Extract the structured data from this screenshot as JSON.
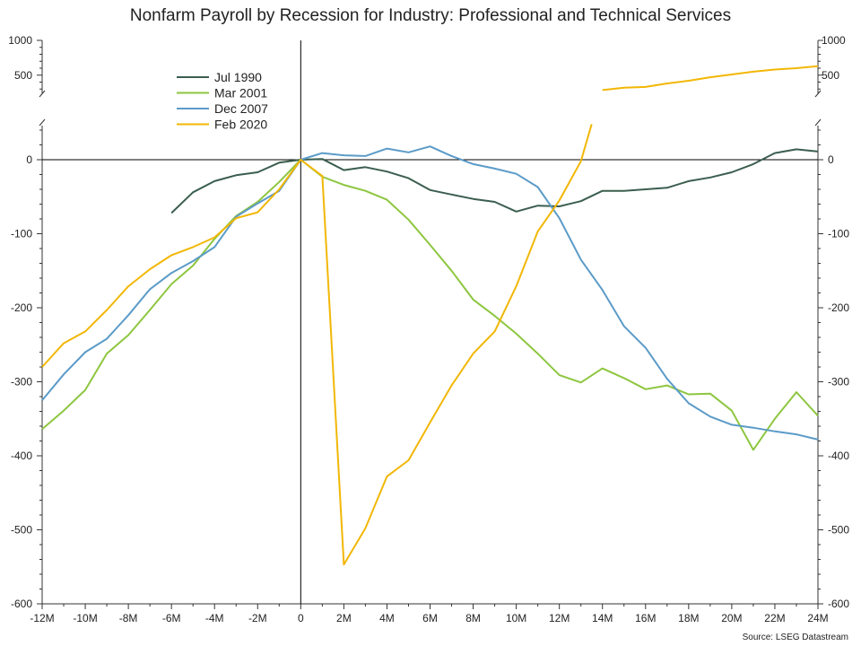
{
  "chart_data": {
    "type": "line",
    "title": "Nonfarm Payroll by Recession for Industry: Professional and Technical Services",
    "source": "Source: LSEG Datastream",
    "xlabel": "",
    "ylabel": "",
    "x_range": [
      -12,
      24
    ],
    "x_ticks": [
      {
        "value": -12,
        "label": "-12M"
      },
      {
        "value": -10,
        "label": "-10M"
      },
      {
        "value": -8,
        "label": "-8M"
      },
      {
        "value": -6,
        "label": "-6M"
      },
      {
        "value": -4,
        "label": "-4M"
      },
      {
        "value": -2,
        "label": "-2M"
      },
      {
        "value": 0,
        "label": "0"
      },
      {
        "value": 2,
        "label": "2M"
      },
      {
        "value": 4,
        "label": "4M"
      },
      {
        "value": 6,
        "label": "6M"
      },
      {
        "value": 8,
        "label": "8M"
      },
      {
        "value": 10,
        "label": "10M"
      },
      {
        "value": 12,
        "label": "12M"
      },
      {
        "value": 14,
        "label": "14M"
      },
      {
        "value": 16,
        "label": "16M"
      },
      {
        "value": 18,
        "label": "18M"
      },
      {
        "value": 20,
        "label": "20M"
      },
      {
        "value": 22,
        "label": "22M"
      },
      {
        "value": 24,
        "label": "24M"
      }
    ],
    "y_main_range": [
      -600,
      40
    ],
    "y_main_ticks": [
      {
        "value": 0,
        "label": "0"
      },
      {
        "value": -100,
        "label": "-100"
      },
      {
        "value": -200,
        "label": "-200"
      },
      {
        "value": -300,
        "label": "-300"
      },
      {
        "value": -400,
        "label": "-400"
      },
      {
        "value": -500,
        "label": "-500"
      },
      {
        "value": -600,
        "label": "-600"
      }
    ],
    "y_break_range": [
      200,
      1000
    ],
    "y_break_ticks": [
      {
        "value": 1000,
        "label": "1000"
      },
      {
        "value": 500,
        "label": "500"
      }
    ],
    "axis_break": true,
    "grid": false,
    "legend_position": "top-left",
    "series": [
      {
        "name": "Jul 1990",
        "color": "#3b5e4f",
        "points": [
          [
            -6,
            -72
          ],
          [
            -5,
            -44
          ],
          [
            -4,
            -29
          ],
          [
            -3,
            -21
          ],
          [
            -2,
            -17
          ],
          [
            -1,
            -4
          ],
          [
            0,
            0
          ],
          [
            1,
            1
          ],
          [
            2,
            -14
          ],
          [
            3,
            -10
          ],
          [
            4,
            -16
          ],
          [
            5,
            -25
          ],
          [
            6,
            -41
          ],
          [
            7,
            -47
          ],
          [
            8,
            -53
          ],
          [
            9,
            -57
          ],
          [
            10,
            -70
          ],
          [
            11,
            -62
          ],
          [
            12,
            -63
          ],
          [
            13,
            -56
          ],
          [
            14,
            -42
          ],
          [
            15,
            -42
          ],
          [
            16,
            -40
          ],
          [
            17,
            -38
          ],
          [
            18,
            -29
          ],
          [
            19,
            -24
          ],
          [
            20,
            -17
          ],
          [
            21,
            -6
          ],
          [
            22,
            9
          ],
          [
            23,
            14
          ],
          [
            24,
            11
          ]
        ]
      },
      {
        "name": "Mar 2001",
        "color": "#8dc63f",
        "points": [
          [
            -12,
            -364
          ],
          [
            -11,
            -339
          ],
          [
            -10,
            -311
          ],
          [
            -9,
            -262
          ],
          [
            -8,
            -237
          ],
          [
            -7,
            -203
          ],
          [
            -6,
            -168
          ],
          [
            -5,
            -143
          ],
          [
            -4,
            -107
          ],
          [
            -3,
            -76
          ],
          [
            -2,
            -57
          ],
          [
            -1,
            -30
          ],
          [
            0,
            0
          ],
          [
            1,
            -23
          ],
          [
            2,
            -34
          ],
          [
            3,
            -42
          ],
          [
            4,
            -54
          ],
          [
            5,
            -81
          ],
          [
            6,
            -115
          ],
          [
            7,
            -150
          ],
          [
            8,
            -189
          ],
          [
            9,
            -211
          ],
          [
            10,
            -235
          ],
          [
            11,
            -262
          ],
          [
            12,
            -291
          ],
          [
            13,
            -301
          ],
          [
            14,
            -282
          ],
          [
            15,
            -295
          ],
          [
            16,
            -310
          ],
          [
            17,
            -305
          ],
          [
            18,
            -317
          ],
          [
            19,
            -316
          ],
          [
            20,
            -339
          ],
          [
            21,
            -392
          ],
          [
            22,
            -350
          ],
          [
            23,
            -314
          ],
          [
            24,
            -346
          ]
        ]
      },
      {
        "name": "Dec 2007",
        "color": "#5b9bc8",
        "points": [
          [
            -12,
            -325
          ],
          [
            -11,
            -290
          ],
          [
            -10,
            -260
          ],
          [
            -9,
            -242
          ],
          [
            -8,
            -210
          ],
          [
            -7,
            -175
          ],
          [
            -6,
            -153
          ],
          [
            -5,
            -137
          ],
          [
            -4,
            -118
          ],
          [
            -3,
            -77
          ],
          [
            -2,
            -59
          ],
          [
            -1,
            -42
          ],
          [
            0,
            0
          ],
          [
            1,
            9
          ],
          [
            2,
            6
          ],
          [
            3,
            5
          ],
          [
            4,
            15
          ],
          [
            5,
            10
          ],
          [
            6,
            18
          ],
          [
            7,
            5
          ],
          [
            8,
            -6
          ],
          [
            9,
            -12
          ],
          [
            10,
            -19
          ],
          [
            11,
            -37
          ],
          [
            12,
            -79
          ],
          [
            13,
            -135
          ],
          [
            14,
            -176
          ],
          [
            15,
            -225
          ],
          [
            16,
            -254
          ],
          [
            17,
            -296
          ],
          [
            18,
            -329
          ],
          [
            19,
            -347
          ],
          [
            20,
            -358
          ],
          [
            21,
            -362
          ],
          [
            22,
            -367
          ],
          [
            23,
            -371
          ],
          [
            24,
            -378
          ]
        ]
      },
      {
        "name": "Feb 2020",
        "color": "#f2b705",
        "points": [
          [
            -12,
            -280
          ],
          [
            -11,
            -248
          ],
          [
            -10,
            -232
          ],
          [
            -9,
            -203
          ],
          [
            -8,
            -171
          ],
          [
            -7,
            -148
          ],
          [
            -6,
            -129
          ],
          [
            -5,
            -118
          ],
          [
            -4,
            -105
          ],
          [
            -3,
            -79
          ],
          [
            -2,
            -71
          ],
          [
            -1,
            -40
          ],
          [
            0,
            0
          ],
          [
            1,
            -22
          ],
          [
            2,
            -547
          ],
          [
            3,
            -498
          ],
          [
            4,
            -428
          ],
          [
            5,
            -406
          ],
          [
            6,
            -355
          ],
          [
            7,
            -305
          ],
          [
            8,
            -262
          ],
          [
            9,
            -232
          ],
          [
            10,
            -171
          ],
          [
            11,
            -97
          ],
          [
            12,
            -55
          ],
          [
            13,
            -2
          ],
          [
            13.5,
            48
          ]
        ],
        "upper_points": [
          [
            14,
            285
          ],
          [
            15,
            320
          ],
          [
            16,
            330
          ],
          [
            17,
            380
          ],
          [
            18,
            420
          ],
          [
            19,
            470
          ],
          [
            20,
            510
          ],
          [
            21,
            550
          ],
          [
            22,
            580
          ],
          [
            23,
            600
          ],
          [
            24,
            630
          ]
        ]
      }
    ]
  }
}
